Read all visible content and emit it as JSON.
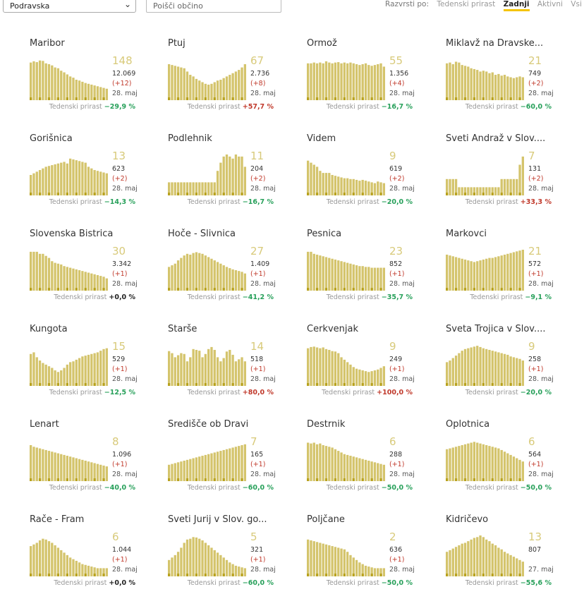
{
  "filter": {
    "region": "Podravska",
    "search_placeholder": "Poišči občino"
  },
  "sort": {
    "label": "Razvrsti po:",
    "options": [
      "Tedenski prirast",
      "Zadnji",
      "Aktivni",
      "Vsi"
    ],
    "active": 1
  },
  "card_label": "Tedenski prirast",
  "colors": {
    "bar": "#d4c46c",
    "bar_dark": "#b8a21e",
    "increase": "#c0392b",
    "decrease": "#27a05a"
  },
  "cards": [
    {
      "name": "Maribor",
      "active": "148",
      "total": "12.069",
      "delta": "(+12)",
      "date": "28. maj",
      "weekly": "−29,9 %",
      "trend": "neg"
    },
    {
      "name": "Ptuj",
      "active": "67",
      "total": "2.736",
      "delta": "(+8)",
      "date": "28. maj",
      "weekly": "+57,7 %",
      "trend": "pos"
    },
    {
      "name": "Ormož",
      "active": "55",
      "total": "1.356",
      "delta": "(+4)",
      "date": "28. maj",
      "weekly": "−16,7 %",
      "trend": "neg"
    },
    {
      "name": "Miklavž na Dravske...",
      "active": "21",
      "total": "749",
      "delta": "(+2)",
      "date": "28. maj",
      "weekly": "−60,0 %",
      "trend": "neg"
    },
    {
      "name": "Gorišnica",
      "active": "13",
      "total": "623",
      "delta": "(+2)",
      "date": "28. maj",
      "weekly": "−14,3 %",
      "trend": "neg"
    },
    {
      "name": "Podlehnik",
      "active": "11",
      "total": "204",
      "delta": "(+2)",
      "date": "28. maj",
      "weekly": "−16,7 %",
      "trend": "neg"
    },
    {
      "name": "Videm",
      "active": "9",
      "total": "619",
      "delta": "(+2)",
      "date": "28. maj",
      "weekly": "−20,0 %",
      "trend": "neg"
    },
    {
      "name": "Sveti Andraž v Slov....",
      "active": "7",
      "total": "131",
      "delta": "(+2)",
      "date": "28. maj",
      "weekly": "+33,3 %",
      "trend": "pos"
    },
    {
      "name": "Slovenska Bistrica",
      "active": "30",
      "total": "3.342",
      "delta": "(+1)",
      "date": "28. maj",
      "weekly": "+0,0 %",
      "trend": "zero"
    },
    {
      "name": "Hoče - Slivnica",
      "active": "27",
      "total": "1.409",
      "delta": "(+1)",
      "date": "28. maj",
      "weekly": "−41,2 %",
      "trend": "neg"
    },
    {
      "name": "Pesnica",
      "active": "23",
      "total": "852",
      "delta": "(+1)",
      "date": "28. maj",
      "weekly": "−35,7 %",
      "trend": "neg"
    },
    {
      "name": "Markovci",
      "active": "21",
      "total": "572",
      "delta": "(+1)",
      "date": "28. maj",
      "weekly": "−9,1 %",
      "trend": "neg"
    },
    {
      "name": "Kungota",
      "active": "15",
      "total": "529",
      "delta": "(+1)",
      "date": "28. maj",
      "weekly": "−12,5 %",
      "trend": "neg"
    },
    {
      "name": "Starše",
      "active": "14",
      "total": "518",
      "delta": "(+1)",
      "date": "28. maj",
      "weekly": "+80,0 %",
      "trend": "pos"
    },
    {
      "name": "Cerkvenjak",
      "active": "9",
      "total": "249",
      "delta": "(+1)",
      "date": "28. maj",
      "weekly": "+100,0 %",
      "trend": "pos"
    },
    {
      "name": "Sveta Trojica v Slov....",
      "active": "9",
      "total": "258",
      "delta": "(+1)",
      "date": "28. maj",
      "weekly": "−20,0 %",
      "trend": "neg"
    },
    {
      "name": "Lenart",
      "active": "8",
      "total": "1.096",
      "delta": "(+1)",
      "date": "28. maj",
      "weekly": "−40,0 %",
      "trend": "neg"
    },
    {
      "name": "Središče ob Dravi",
      "active": "7",
      "total": "165",
      "delta": "(+1)",
      "date": "28. maj",
      "weekly": "−60,0 %",
      "trend": "neg"
    },
    {
      "name": "Destrnik",
      "active": "6",
      "total": "288",
      "delta": "(+1)",
      "date": "28. maj",
      "weekly": "−50,0 %",
      "trend": "neg"
    },
    {
      "name": "Oplotnica",
      "active": "6",
      "total": "564",
      "delta": "(+1)",
      "date": "28. maj",
      "weekly": "−50,0 %",
      "trend": "neg"
    },
    {
      "name": "Rače - Fram",
      "active": "6",
      "total": "1.044",
      "delta": "(+1)",
      "date": "28. maj",
      "weekly": "+0,0 %",
      "trend": "zero"
    },
    {
      "name": "Sveti Jurij v Slov. go...",
      "active": "5",
      "total": "321",
      "delta": "(+1)",
      "date": "28. maj",
      "weekly": "−60,0 %",
      "trend": "neg"
    },
    {
      "name": "Poljčane",
      "active": "2",
      "total": "636",
      "delta": "(+1)",
      "date": "28. maj",
      "weekly": "−50,0 %",
      "trend": "neg"
    },
    {
      "name": "Kidričevo",
      "active": "13",
      "total": "807",
      "delta": "",
      "date": "27. maj",
      "weekly": "−55,6 %",
      "trend": "neg"
    }
  ],
  "series": [
    [
      92,
      95,
      93,
      97,
      96,
      90,
      88,
      85,
      80,
      78,
      72,
      68,
      63,
      58,
      55,
      50,
      48,
      45,
      42,
      40,
      38,
      36,
      34,
      32,
      30,
      28
    ],
    [
      88,
      86,
      84,
      82,
      80,
      78,
      70,
      62,
      58,
      52,
      48,
      44,
      40,
      38,
      40,
      44,
      48,
      50,
      54,
      58,
      62,
      66,
      70,
      74,
      80,
      88
    ],
    [
      90,
      90,
      92,
      90,
      92,
      90,
      95,
      92,
      90,
      92,
      93,
      90,
      92,
      90,
      92,
      90,
      88,
      86,
      88,
      90,
      86,
      84,
      86,
      88,
      90,
      82
    ],
    [
      90,
      92,
      88,
      94,
      92,
      86,
      84,
      82,
      78,
      76,
      74,
      70,
      72,
      70,
      66,
      68,
      62,
      64,
      60,
      62,
      58,
      56,
      54,
      56,
      58,
      56
    ],
    [
      50,
      54,
      58,
      62,
      66,
      70,
      72,
      74,
      76,
      78,
      80,
      82,
      78,
      90,
      88,
      86,
      84,
      82,
      80,
      70,
      66,
      62,
      60,
      58,
      56,
      54
    ],
    [
      32,
      32,
      32,
      32,
      32,
      32,
      32,
      32,
      32,
      32,
      32,
      32,
      32,
      32,
      32,
      32,
      60,
      80,
      95,
      100,
      95,
      90,
      100,
      95,
      95,
      70
    ],
    [
      85,
      80,
      75,
      70,
      60,
      55,
      55,
      55,
      50,
      48,
      46,
      44,
      42,
      42,
      40,
      40,
      38,
      36,
      38,
      36,
      34,
      32,
      30,
      34,
      32,
      30
    ],
    [
      40,
      40,
      40,
      40,
      20,
      20,
      20,
      20,
      20,
      20,
      20,
      20,
      20,
      20,
      20,
      20,
      20,
      20,
      40,
      40,
      40,
      40,
      40,
      40,
      75,
      95
    ],
    [
      95,
      95,
      95,
      90,
      90,
      85,
      80,
      72,
      68,
      66,
      64,
      60,
      58,
      56,
      54,
      52,
      50,
      48,
      46,
      44,
      42,
      40,
      38,
      36,
      34,
      30
    ],
    [
      58,
      62,
      66,
      74,
      80,
      86,
      90,
      88,
      92,
      94,
      92,
      90,
      86,
      82,
      78,
      74,
      70,
      66,
      62,
      58,
      55,
      52,
      50,
      48,
      46,
      42
    ],
    [
      95,
      95,
      90,
      88,
      86,
      84,
      82,
      80,
      78,
      76,
      74,
      72,
      70,
      68,
      66,
      64,
      62,
      60,
      60,
      58,
      58,
      56,
      56,
      56,
      56,
      56
    ],
    [
      88,
      86,
      84,
      82,
      80,
      78,
      76,
      74,
      72,
      70,
      72,
      74,
      76,
      78,
      80,
      80,
      82,
      84,
      86,
      88,
      90,
      92,
      94,
      96,
      98,
      100
    ],
    [
      78,
      82,
      70,
      62,
      56,
      52,
      48,
      44,
      38,
      34,
      38,
      44,
      52,
      58,
      60,
      64,
      68,
      72,
      74,
      76,
      78,
      80,
      82,
      86,
      90,
      92
    ],
    [
      85,
      80,
      70,
      75,
      80,
      78,
      60,
      70,
      90,
      88,
      86,
      70,
      78,
      90,
      95,
      88,
      70,
      60,
      68,
      84,
      88,
      76,
      60,
      65,
      70,
      60
    ],
    [
      92,
      95,
      96,
      94,
      92,
      94,
      90,
      88,
      85,
      84,
      80,
      70,
      64,
      58,
      52,
      46,
      42,
      40,
      38,
      36,
      34,
      36,
      38,
      40,
      44,
      48
    ],
    [
      58,
      62,
      68,
      74,
      80,
      86,
      90,
      92,
      94,
      96,
      98,
      95,
      92,
      90,
      88,
      86,
      84,
      82,
      80,
      78,
      76,
      72,
      70,
      68,
      66,
      62
    ],
    [
      88,
      84,
      82,
      80,
      78,
      76,
      74,
      72,
      70,
      68,
      66,
      64,
      62,
      60,
      58,
      56,
      54,
      52,
      50,
      48,
      46,
      44,
      42,
      40,
      38,
      36
    ],
    [
      40,
      42,
      44,
      46,
      48,
      50,
      52,
      54,
      56,
      58,
      60,
      62,
      64,
      66,
      68,
      70,
      72,
      74,
      76,
      78,
      80,
      82,
      84,
      86,
      88,
      90
    ],
    [
      94,
      92,
      94,
      90,
      92,
      88,
      86,
      84,
      82,
      78,
      74,
      70,
      66,
      64,
      62,
      60,
      58,
      56,
      54,
      52,
      50,
      48,
      46,
      44,
      42,
      40
    ],
    [
      78,
      80,
      82,
      84,
      86,
      88,
      90,
      92,
      94,
      96,
      94,
      92,
      90,
      88,
      86,
      84,
      82,
      80,
      76,
      72,
      68,
      64,
      60,
      56,
      52,
      48
    ],
    [
      74,
      78,
      82,
      88,
      92,
      90,
      86,
      82,
      76,
      70,
      64,
      58,
      52,
      46,
      42,
      38,
      34,
      30,
      28,
      26,
      24,
      22,
      20,
      20,
      20,
      20
    ],
    [
      40,
      46,
      52,
      60,
      70,
      82,
      90,
      92,
      96,
      95,
      92,
      88,
      82,
      76,
      70,
      64,
      58,
      52,
      46,
      40,
      34,
      30,
      26,
      24,
      22,
      20
    ],
    [
      90,
      88,
      86,
      84,
      82,
      80,
      78,
      76,
      74,
      72,
      70,
      68,
      66,
      60,
      52,
      46,
      40,
      34,
      30,
      26,
      24,
      22,
      20,
      20,
      20,
      20
    ],
    [
      60,
      64,
      68,
      72,
      76,
      80,
      82,
      86,
      90,
      94,
      96,
      100,
      96,
      90,
      86,
      80,
      76,
      70,
      66,
      60,
      56,
      52,
      48,
      44,
      40,
      36
    ]
  ]
}
